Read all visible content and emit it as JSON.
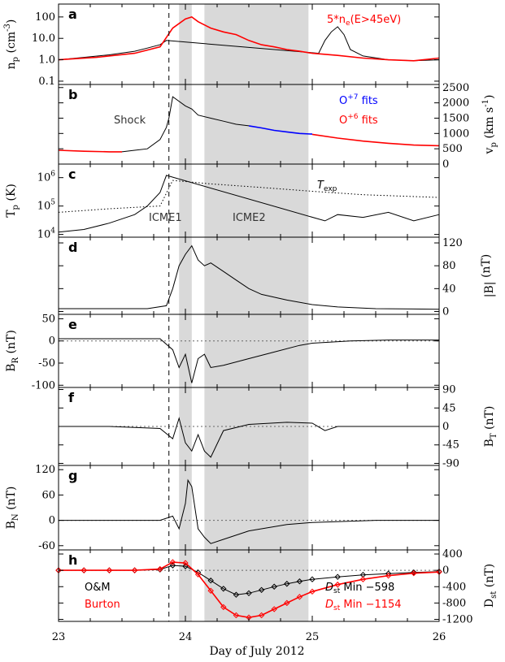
{
  "figure": {
    "xlabel": "Day of July 2012",
    "x_ticks": [
      "23",
      "24",
      "25",
      "26"
    ]
  },
  "chart_data": [
    {
      "panel": "a",
      "type": "line",
      "ylabel": "n_p (cm^-3)",
      "ylabel_text": "n",
      "ylabel_sub": "p",
      "ylabel_unit": " (cm",
      "ylabel_sup": "-3",
      "ylabel_close": ")",
      "yscale": "log",
      "ylim": [
        0.07,
        400
      ],
      "y_ticks": [
        {
          "value": 100,
          "label": "100"
        },
        {
          "value": 10,
          "label": "10.0"
        },
        {
          "value": 1,
          "label": "1.0"
        },
        {
          "value": 0.1,
          "label": "0.1"
        }
      ],
      "annotations": {
        "ne_label": "5*n",
        "ne_sub": "e",
        "ne_rest": "(E>45eV)"
      },
      "series": [
        {
          "color": "#000000",
          "x": [
            23.0,
            23.2,
            23.4,
            23.6,
            23.7,
            23.8,
            23.85,
            25.05,
            25.1,
            25.15,
            25.2,
            25.25,
            25.3,
            25.4,
            25.6,
            25.8,
            26.0
          ],
          "y": [
            1.0,
            1.3,
            1.7,
            2.5,
            3.5,
            5,
            8,
            2,
            8,
            20,
            35,
            15,
            3,
            1.5,
            1.0,
            0.9,
            1.0
          ]
        },
        {
          "color": "#ff0000",
          "x": [
            23.0,
            23.3,
            23.6,
            23.8,
            23.9,
            24.0,
            24.05,
            24.1,
            24.2,
            24.3,
            24.4,
            24.5,
            24.6,
            24.7,
            24.8,
            24.9,
            25.0,
            25.2,
            25.4,
            25.6,
            25.8,
            26.0
          ],
          "y": [
            1.0,
            1.3,
            2.0,
            4.0,
            30,
            80,
            100,
            60,
            30,
            20,
            15,
            8,
            5,
            4,
            3,
            2.5,
            2,
            1.6,
            1.2,
            1.0,
            0.9,
            1.2
          ]
        }
      ]
    },
    {
      "panel": "b",
      "type": "line",
      "ylabel": "v_p (km s^-1)",
      "ylabel_text": "v",
      "ylabel_sub": "p",
      "ylabel_unit": " (km s",
      "ylabel_sup": "-1",
      "ylabel_close": ")",
      "ylim": [
        0,
        2600
      ],
      "y_ticks": [
        {
          "value": 2500,
          "label": "2500"
        },
        {
          "value": 2000,
          "label": "2000"
        },
        {
          "value": 1500,
          "label": "1500"
        },
        {
          "value": 1000,
          "label": "1000"
        },
        {
          "value": 500,
          "label": "500"
        },
        {
          "value": 0,
          "label": "0"
        }
      ],
      "annotations": {
        "shock": "Shock",
        "o7_label": "O",
        "o7_sup": "+7",
        "o7_rest": " fits",
        "o6_label": "O",
        "o6_sup": "+6",
        "o6_rest": " fits"
      },
      "series": [
        {
          "color": "#ff0000",
          "x": [
            23.0,
            23.2,
            23.4,
            23.5
          ],
          "y": [
            450,
            420,
            400,
            400
          ]
        },
        {
          "color": "#000000",
          "x": [
            23.5,
            23.6,
            23.7,
            23.8,
            23.85,
            23.87,
            23.9,
            24.0,
            24.05,
            24.1,
            24.2,
            24.3,
            24.4,
            24.5
          ],
          "y": [
            400,
            450,
            500,
            800,
            1200,
            1500,
            2200,
            1900,
            1800,
            1600,
            1500,
            1400,
            1300,
            1250
          ]
        },
        {
          "color": "#0000ff",
          "x": [
            24.5,
            24.6,
            24.7,
            24.8,
            24.9,
            25.0
          ],
          "y": [
            1250,
            1180,
            1100,
            1050,
            1000,
            980
          ]
        },
        {
          "color": "#ff0000",
          "x": [
            25.0,
            25.2,
            25.4,
            25.6,
            25.8,
            26.0
          ],
          "y": [
            970,
            850,
            750,
            680,
            620,
            600
          ]
        }
      ]
    },
    {
      "panel": "c",
      "type": "line",
      "ylabel": "T_p (K)",
      "ylabel_text": "T",
      "ylabel_sub": "p",
      "ylabel_unit": " (K)",
      "yscale": "log",
      "ylim": [
        8000,
        3000000
      ],
      "y_ticks": [
        {
          "value": 1000000,
          "label": "10",
          "sup": "6"
        },
        {
          "value": 100000,
          "label": "10",
          "sup": "5"
        },
        {
          "value": 10000,
          "label": "10",
          "sup": "4"
        }
      ],
      "annotations": {
        "texp_label": "T",
        "texp_sub": "exp",
        "icme1": "ICME1",
        "icme2": "ICME2"
      },
      "series": [
        {
          "color": "#000000",
          "x": [
            23.0,
            23.2,
            23.4,
            23.6,
            23.7,
            23.8,
            23.85,
            25.1,
            25.2,
            25.4,
            25.6,
            25.8,
            26.0
          ],
          "y": [
            12000,
            15000,
            25000,
            50000,
            100000,
            300000,
            1200000,
            30000,
            50000,
            40000,
            60000,
            30000,
            50000
          ]
        },
        {
          "color": "#000000",
          "dashed": true,
          "x": [
            23.0,
            23.4,
            23.8,
            23.9,
            24.2,
            24.6,
            25.0,
            25.4,
            26.0
          ],
          "y": [
            60000,
            80000,
            100000,
            800000,
            600000,
            450000,
            330000,
            250000,
            200000
          ]
        }
      ]
    },
    {
      "panel": "d",
      "type": "line",
      "ylabel": "|B| (nT)",
      "ylabel_text": "|B|",
      "ylabel_unit": " (nT)",
      "ylim": [
        -5,
        130
      ],
      "y_ticks": [
        {
          "value": 120,
          "label": "120"
        },
        {
          "value": 80,
          "label": "80"
        },
        {
          "value": 40,
          "label": "40"
        },
        {
          "value": 0,
          "label": "0"
        }
      ],
      "series": [
        {
          "color": "#000000",
          "x": [
            23.0,
            23.4,
            23.7,
            23.85,
            23.9,
            23.95,
            24.0,
            24.05,
            24.1,
            24.15,
            24.2,
            24.3,
            24.4,
            24.5,
            24.6,
            24.8,
            25.0,
            25.2,
            25.5,
            26.0
          ],
          "y": [
            5,
            5,
            5,
            10,
            40,
            80,
            100,
            115,
            90,
            80,
            85,
            70,
            55,
            40,
            30,
            20,
            12,
            8,
            5,
            4
          ]
        }
      ]
    },
    {
      "panel": "e",
      "type": "line",
      "ylabel": "B_R (nT)",
      "ylabel_text": "B",
      "ylabel_sub": "R",
      "ylabel_unit": " (nT)",
      "ylim": [
        -105,
        60
      ],
      "y_ticks": [
        {
          "value": 50,
          "label": "50"
        },
        {
          "value": 0,
          "label": "0"
        },
        {
          "value": -50,
          "label": "-50"
        },
        {
          "value": -100,
          "label": "-100"
        }
      ],
      "zero_line": true,
      "series": [
        {
          "color": "#000000",
          "x": [
            23.0,
            23.4,
            23.8,
            23.9,
            23.95,
            24.0,
            24.05,
            24.1,
            24.15,
            24.2,
            24.3,
            24.5,
            24.7,
            24.9,
            25.0,
            25.3,
            25.6,
            26.0
          ],
          "y": [
            5,
            5,
            5,
            -20,
            -60,
            -30,
            -95,
            -40,
            -30,
            -60,
            -55,
            -40,
            -25,
            -10,
            -5,
            0,
            2,
            2
          ]
        }
      ]
    },
    {
      "panel": "f",
      "type": "line",
      "ylabel": "B_T (nT)",
      "ylabel_text": "B",
      "ylabel_sub": "T",
      "ylabel_unit": " (nT)",
      "ylim": [
        -95,
        95
      ],
      "y_ticks": [
        {
          "value": 90,
          "label": "90"
        },
        {
          "value": 45,
          "label": "45"
        },
        {
          "value": 0,
          "label": "0"
        },
        {
          "value": -45,
          "label": "-45"
        },
        {
          "value": -90,
          "label": "-90"
        }
      ],
      "zero_line": true,
      "series": [
        {
          "color": "#000000",
          "x": [
            23.0,
            23.4,
            23.8,
            23.9,
            23.95,
            24.0,
            24.05,
            24.1,
            24.15,
            24.2,
            24.3,
            24.5,
            24.8,
            25.0,
            25.1,
            25.2,
            25.5,
            26.0
          ],
          "y": [
            0,
            0,
            -5,
            -30,
            20,
            -40,
            -60,
            -20,
            -60,
            -75,
            -10,
            5,
            10,
            8,
            -10,
            0,
            0,
            0
          ]
        }
      ]
    },
    {
      "panel": "g",
      "type": "line",
      "ylabel": "B_N (nT)",
      "ylabel_text": "B",
      "ylabel_sub": "N",
      "ylabel_unit": " (nT)",
      "ylim": [
        -70,
        130
      ],
      "y_ticks": [
        {
          "value": 120,
          "label": "120"
        },
        {
          "value": 60,
          "label": "60"
        },
        {
          "value": 0,
          "label": "0"
        },
        {
          "value": -60,
          "label": "-60"
        }
      ],
      "zero_line": true,
      "series": [
        {
          "color": "#000000",
          "x": [
            23.0,
            23.4,
            23.8,
            23.9,
            23.95,
            24.0,
            24.02,
            24.05,
            24.1,
            24.15,
            24.2,
            24.3,
            24.5,
            24.8,
            25.0,
            25.5,
            26.0
          ],
          "y": [
            0,
            0,
            0,
            10,
            -20,
            40,
            95,
            80,
            -20,
            -40,
            -55,
            -45,
            -25,
            -10,
            -5,
            0,
            0
          ]
        }
      ]
    },
    {
      "panel": "h",
      "type": "line",
      "ylabel": "D_st (nT)",
      "ylabel_text": "D",
      "ylabel_sub": "st",
      "ylabel_unit": " (nT)",
      "ylim": [
        -1250,
        500
      ],
      "y_ticks": [
        {
          "value": 400,
          "label": "400"
        },
        {
          "value": 0,
          "label": "0"
        },
        {
          "value": -400,
          "label": "-400"
        },
        {
          "value": -800,
          "label": "-800"
        },
        {
          "value": -1200,
          "label": "-1200"
        }
      ],
      "zero_line": true,
      "annotations": {
        "om_label": "O&M",
        "burton_label": "Burton",
        "om_min_text": "D",
        "om_min_sub": "st",
        "om_min_rest": " Min −598",
        "burton_min_text": "D",
        "burton_min_sub": "st",
        "burton_min_rest": " Min −1154"
      },
      "series": [
        {
          "color": "#000000",
          "markers": true,
          "x": [
            23.0,
            23.2,
            23.4,
            23.6,
            23.8,
            23.9,
            24.0,
            24.1,
            24.2,
            24.3,
            24.4,
            24.5,
            24.6,
            24.7,
            24.8,
            24.9,
            25.0,
            25.2,
            25.4,
            25.6,
            25.8,
            26.0
          ],
          "y": [
            0,
            0,
            0,
            0,
            20,
            120,
            100,
            -50,
            -250,
            -450,
            -598,
            -560,
            -480,
            -400,
            -330,
            -270,
            -220,
            -160,
            -110,
            -80,
            -50,
            -30
          ]
        },
        {
          "color": "#ff0000",
          "markers": true,
          "x": [
            23.0,
            23.2,
            23.4,
            23.6,
            23.8,
            23.9,
            24.0,
            24.1,
            24.2,
            24.3,
            24.4,
            24.5,
            24.6,
            24.7,
            24.8,
            24.9,
            25.0,
            25.2,
            25.4,
            25.6,
            25.8,
            26.0
          ],
          "y": [
            0,
            0,
            0,
            0,
            30,
            200,
            180,
            -100,
            -500,
            -900,
            -1100,
            -1154,
            -1100,
            -950,
            -800,
            -650,
            -520,
            -350,
            -220,
            -130,
            -70,
            -40
          ]
        }
      ]
    }
  ]
}
